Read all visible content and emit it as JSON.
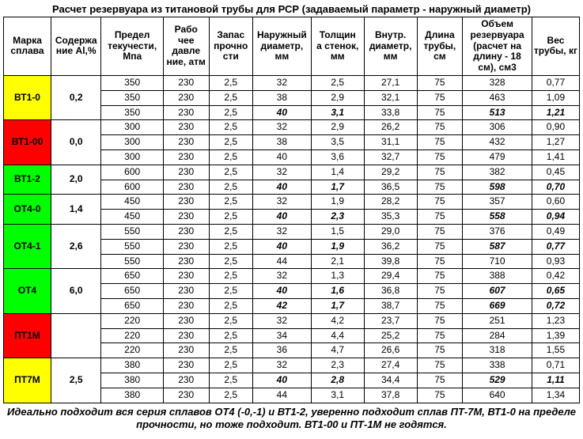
{
  "title": "Расчет резервуара из титановой трубы для РСР (задаваемый параметр - наружный диаметр)",
  "footer": "Идеально подходит вся серия сплавов ОТ4 (-0,-1) и ВТ1-2, уверенно подходит сплав ПТ-7М, ВТ1-0 на пределе прочности, но тоже подходит. ВТ1-00 и ПТ-1М не годятся.",
  "columns": [
    "Марка сплава",
    "Содержа\nние Al,%",
    "Предел текучести, Мпа",
    "Рабо\nчее давле\nние, атм",
    "Запас прочно\nсти",
    "Наружный диаметр, мм",
    "Толщин\nа стенок, мм",
    "Внутр. диаметр, мм",
    "Длина трубы, см",
    "Объем резервуара (расчет на длину - 18 см), см3",
    "Вес трубы, кг"
  ],
  "groups": [
    {
      "alloy": "ВТ1-0",
      "al": "0,2",
      "color": "#ffff00",
      "rows": [
        {
          "v": [
            "350",
            "230",
            "2,5",
            "32",
            "2,5",
            "27,1",
            "75",
            "328",
            "0,77"
          ],
          "bold": false
        },
        {
          "v": [
            "350",
            "230",
            "2,5",
            "38",
            "2,9",
            "32,1",
            "75",
            "463",
            "1,09"
          ],
          "bold": false
        },
        {
          "v": [
            "350",
            "230",
            "2,5",
            "40",
            "3,1",
            "33,8",
            "75",
            "513",
            "1,21"
          ],
          "bold": true
        }
      ]
    },
    {
      "alloy": "ВТ1-00",
      "al": "0,0",
      "color": "#ff0000",
      "rows": [
        {
          "v": [
            "300",
            "230",
            "2,5",
            "32",
            "2,9",
            "26,2",
            "75",
            "306",
            "0,90"
          ],
          "bold": false
        },
        {
          "v": [
            "300",
            "230",
            "2,5",
            "38",
            "3,5",
            "31,1",
            "75",
            "432",
            "1,27"
          ],
          "bold": false
        },
        {
          "v": [
            "300",
            "230",
            "2,5",
            "40",
            "3,6",
            "32,7",
            "75",
            "479",
            "1,41"
          ],
          "bold": false
        }
      ]
    },
    {
      "alloy": "ВТ1-2",
      "al": "2,0",
      "color": "#00ff00",
      "rows": [
        {
          "v": [
            "600",
            "230",
            "2,5",
            "32",
            "1,4",
            "29,2",
            "75",
            "382",
            "0,45"
          ],
          "bold": false
        },
        {
          "v": [
            "600",
            "230",
            "2,5",
            "40",
            "1,7",
            "36,5",
            "75",
            "598",
            "0,70"
          ],
          "bold": true
        }
      ]
    },
    {
      "alloy": "ОТ4-0",
      "al": "1,4",
      "color": "#00ff00",
      "rows": [
        {
          "v": [
            "450",
            "230",
            "2,5",
            "32",
            "1,9",
            "28,2",
            "75",
            "357",
            "0,60"
          ],
          "bold": false
        },
        {
          "v": [
            "450",
            "230",
            "2,5",
            "40",
            "2,3",
            "35,3",
            "75",
            "558",
            "0,94"
          ],
          "bold": true
        }
      ]
    },
    {
      "alloy": "ОТ4-1",
      "al": "2,6",
      "color": "#00ff00",
      "rows": [
        {
          "v": [
            "550",
            "230",
            "2,5",
            "32",
            "1,5",
            "29,0",
            "75",
            "376",
            "0,49"
          ],
          "bold": false
        },
        {
          "v": [
            "550",
            "230",
            "2,5",
            "40",
            "1,9",
            "36,2",
            "75",
            "587",
            "0,77"
          ],
          "bold": true
        },
        {
          "v": [
            "550",
            "230",
            "2,5",
            "44",
            "2,1",
            "39,8",
            "75",
            "710",
            "0,93"
          ],
          "bold": false
        }
      ]
    },
    {
      "alloy": "ОТ4",
      "al": "6,0",
      "color": "#00ff00",
      "rows": [
        {
          "v": [
            "650",
            "230",
            "2,5",
            "32",
            "1,3",
            "29,4",
            "75",
            "388",
            "0,42"
          ],
          "bold": false
        },
        {
          "v": [
            "650",
            "230",
            "2,5",
            "40",
            "1,6",
            "36,8",
            "75",
            "607",
            "0,65"
          ],
          "bold": true
        },
        {
          "v": [
            "650",
            "230",
            "2,5",
            "42",
            "1,7",
            "38,7",
            "75",
            "669",
            "0,72"
          ],
          "bold": true
        }
      ]
    },
    {
      "alloy": "ПТ1М",
      "al": "",
      "color": "#ff0000",
      "rows": [
        {
          "v": [
            "220",
            "230",
            "2,5",
            "32",
            "4,2",
            "23,7",
            "75",
            "251",
            "1,23"
          ],
          "bold": false
        },
        {
          "v": [
            "220",
            "230",
            "2,5",
            "34",
            "4,4",
            "25,2",
            "75",
            "284",
            "1,39"
          ],
          "bold": false
        },
        {
          "v": [
            "220",
            "230",
            "2,5",
            "36",
            "4,7",
            "26,6",
            "75",
            "318",
            "1,55"
          ],
          "bold": false
        }
      ]
    },
    {
      "alloy": "ПТ7М",
      "al": "2,5",
      "color": "#ffff00",
      "rows": [
        {
          "v": [
            "380",
            "230",
            "2,5",
            "32",
            "2,3",
            "27,4",
            "75",
            "338",
            "0,71"
          ],
          "bold": false
        },
        {
          "v": [
            "380",
            "230",
            "2,5",
            "40",
            "2,8",
            "34,4",
            "75",
            "529",
            "1,11"
          ],
          "bold": true
        },
        {
          "v": [
            "380",
            "230",
            "2,5",
            "44",
            "3,1",
            "37,8",
            "75",
            "640",
            "1,34"
          ],
          "bold": false
        }
      ]
    }
  ]
}
